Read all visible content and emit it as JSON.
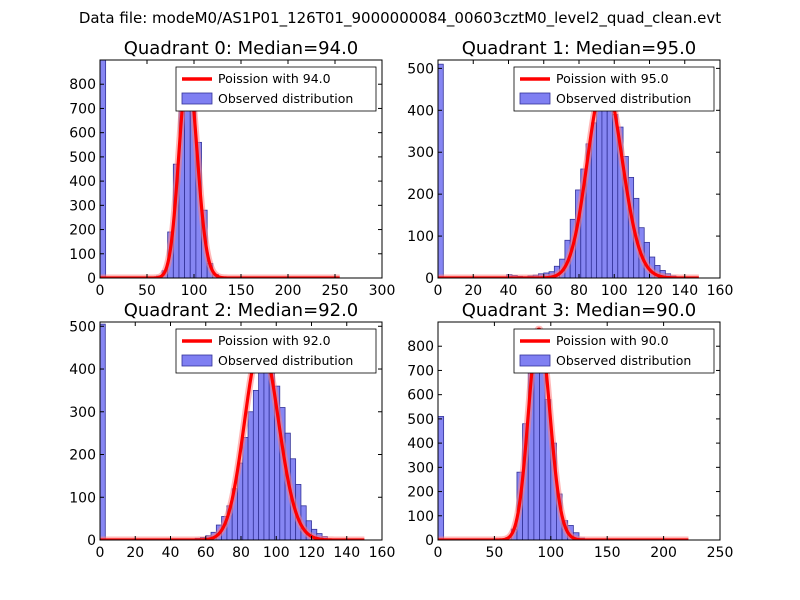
{
  "suptitle": "Data file: modeM0/AS1P01_126T01_9000000084_00603cztM0_level2_quad_clean.evt",
  "colors": {
    "bar_fill": "#7f7ff2",
    "bar_edge": "#333399",
    "curve": "#ff0000",
    "curve_halo": "#ff8080"
  },
  "chart_data": [
    {
      "type": "bar",
      "title": "Quadrant 0: Median=94.0",
      "xlim": [
        0,
        300
      ],
      "ylim": [
        0,
        900
      ],
      "xticks": [
        0,
        50,
        100,
        150,
        200,
        250,
        300
      ],
      "yticks": [
        0,
        100,
        200,
        300,
        400,
        500,
        600,
        700,
        800
      ],
      "legend": {
        "position": "top-right",
        "entries": [
          "Poission with 94.0",
          "Observed distribution"
        ]
      },
      "bin_width": 6,
      "bins": [
        {
          "x": 0,
          "y": 900
        },
        {
          "x": 48,
          "y": 2
        },
        {
          "x": 54,
          "y": 3
        },
        {
          "x": 60,
          "y": 8
        },
        {
          "x": 66,
          "y": 30
        },
        {
          "x": 72,
          "y": 190
        },
        {
          "x": 78,
          "y": 470
        },
        {
          "x": 84,
          "y": 720
        },
        {
          "x": 90,
          "y": 850
        },
        {
          "x": 96,
          "y": 790
        },
        {
          "x": 102,
          "y": 560
        },
        {
          "x": 108,
          "y": 280
        },
        {
          "x": 114,
          "y": 60
        },
        {
          "x": 120,
          "y": 15
        },
        {
          "x": 126,
          "y": 4
        }
      ],
      "curve": {
        "label": "Poission with 94.0",
        "mean": 94.0,
        "x_range": [
          0,
          255
        ]
      }
    },
    {
      "type": "bar",
      "title": "Quadrant 1: Median=95.0",
      "xlim": [
        0,
        160
      ],
      "ylim": [
        0,
        520
      ],
      "xticks": [
        0,
        20,
        40,
        60,
        80,
        100,
        120,
        140,
        160
      ],
      "yticks": [
        0,
        100,
        200,
        300,
        400,
        500
      ],
      "legend": {
        "position": "top-right",
        "entries": [
          "Poission with 95.0",
          "Observed distribution"
        ]
      },
      "bin_width": 3,
      "bins": [
        {
          "x": 0,
          "y": 510
        },
        {
          "x": 39,
          "y": 8
        },
        {
          "x": 42,
          "y": 6
        },
        {
          "x": 45,
          "y": 4
        },
        {
          "x": 48,
          "y": 3
        },
        {
          "x": 51,
          "y": 5
        },
        {
          "x": 54,
          "y": 7
        },
        {
          "x": 57,
          "y": 10
        },
        {
          "x": 60,
          "y": 12
        },
        {
          "x": 63,
          "y": 15
        },
        {
          "x": 66,
          "y": 28
        },
        {
          "x": 69,
          "y": 45
        },
        {
          "x": 72,
          "y": 90
        },
        {
          "x": 75,
          "y": 140
        },
        {
          "x": 78,
          "y": 210
        },
        {
          "x": 81,
          "y": 260
        },
        {
          "x": 84,
          "y": 320
        },
        {
          "x": 87,
          "y": 370
        },
        {
          "x": 90,
          "y": 440
        },
        {
          "x": 93,
          "y": 470
        },
        {
          "x": 96,
          "y": 460
        },
        {
          "x": 99,
          "y": 390
        },
        {
          "x": 102,
          "y": 360
        },
        {
          "x": 105,
          "y": 290
        },
        {
          "x": 108,
          "y": 240
        },
        {
          "x": 111,
          "y": 190
        },
        {
          "x": 114,
          "y": 120
        },
        {
          "x": 117,
          "y": 85
        },
        {
          "x": 120,
          "y": 50
        },
        {
          "x": 123,
          "y": 30
        },
        {
          "x": 126,
          "y": 18
        },
        {
          "x": 129,
          "y": 10
        },
        {
          "x": 132,
          "y": 5
        }
      ],
      "curve": {
        "label": "Poission with 95.0",
        "mean": 95.0,
        "x_range": [
          0,
          148
        ]
      }
    },
    {
      "type": "bar",
      "title": "Quadrant 2: Median=92.0",
      "xlim": [
        0,
        160
      ],
      "ylim": [
        0,
        510
      ],
      "xticks": [
        0,
        20,
        40,
        60,
        80,
        100,
        120,
        140,
        160
      ],
      "yticks": [
        0,
        100,
        200,
        300,
        400,
        500
      ],
      "legend": {
        "position": "top-right",
        "entries": [
          "Poission with 92.0",
          "Observed distribution"
        ]
      },
      "bin_width": 3,
      "bins": [
        {
          "x": 0,
          "y": 505
        },
        {
          "x": 51,
          "y": 2
        },
        {
          "x": 54,
          "y": 4
        },
        {
          "x": 57,
          "y": 6
        },
        {
          "x": 60,
          "y": 10
        },
        {
          "x": 63,
          "y": 18
        },
        {
          "x": 66,
          "y": 35
        },
        {
          "x": 69,
          "y": 55
        },
        {
          "x": 72,
          "y": 80
        },
        {
          "x": 75,
          "y": 120
        },
        {
          "x": 78,
          "y": 180
        },
        {
          "x": 81,
          "y": 240
        },
        {
          "x": 84,
          "y": 300
        },
        {
          "x": 87,
          "y": 350
        },
        {
          "x": 90,
          "y": 410
        },
        {
          "x": 93,
          "y": 460
        },
        {
          "x": 96,
          "y": 450
        },
        {
          "x": 99,
          "y": 360
        },
        {
          "x": 102,
          "y": 310
        },
        {
          "x": 105,
          "y": 250
        },
        {
          "x": 108,
          "y": 190
        },
        {
          "x": 111,
          "y": 130
        },
        {
          "x": 114,
          "y": 80
        },
        {
          "x": 117,
          "y": 45
        },
        {
          "x": 120,
          "y": 25
        },
        {
          "x": 123,
          "y": 15
        },
        {
          "x": 126,
          "y": 8
        }
      ],
      "curve": {
        "label": "Poission with 92.0",
        "mean": 92.0,
        "x_range": [
          0,
          150
        ]
      }
    },
    {
      "type": "bar",
      "title": "Quadrant 3: Median=90.0",
      "xlim": [
        0,
        250
      ],
      "ylim": [
        0,
        900
      ],
      "xticks": [
        0,
        50,
        100,
        150,
        200,
        250
      ],
      "yticks": [
        0,
        100,
        200,
        300,
        400,
        500,
        600,
        700,
        800
      ],
      "legend": {
        "position": "top-right",
        "entries": [
          "Poission with 90.0",
          "Observed distribution"
        ]
      },
      "bin_width": 5,
      "bins": [
        {
          "x": 0,
          "y": 510
        },
        {
          "x": 55,
          "y": 3
        },
        {
          "x": 60,
          "y": 10
        },
        {
          "x": 65,
          "y": 45
        },
        {
          "x": 70,
          "y": 280
        },
        {
          "x": 75,
          "y": 480
        },
        {
          "x": 80,
          "y": 760
        },
        {
          "x": 85,
          "y": 870
        },
        {
          "x": 90,
          "y": 850
        },
        {
          "x": 95,
          "y": 580
        },
        {
          "x": 100,
          "y": 400
        },
        {
          "x": 105,
          "y": 190
        },
        {
          "x": 110,
          "y": 80
        },
        {
          "x": 115,
          "y": 60
        },
        {
          "x": 120,
          "y": 30
        },
        {
          "x": 125,
          "y": 8
        }
      ],
      "curve": {
        "label": "Poission with 90.0",
        "mean": 90.0,
        "x_range": [
          0,
          222
        ]
      }
    }
  ]
}
